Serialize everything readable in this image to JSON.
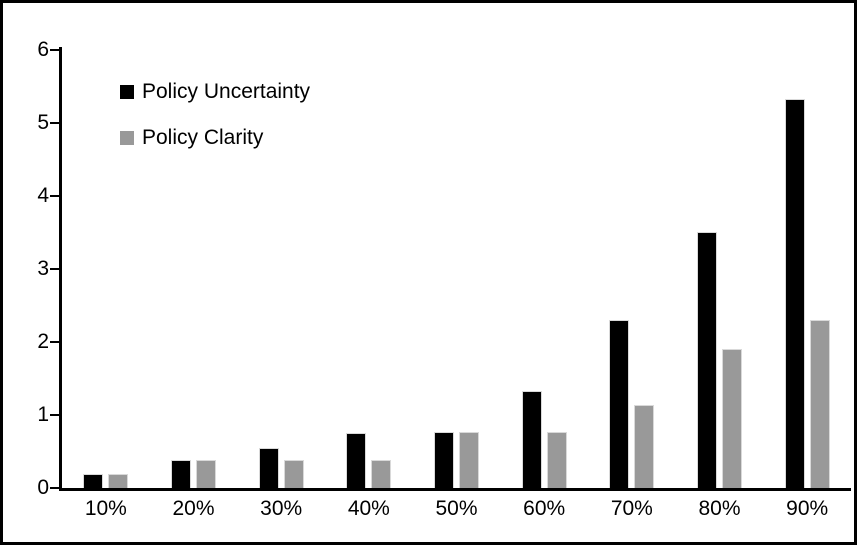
{
  "figure": {
    "background_color": "#ffffff",
    "border_color": "#000000"
  },
  "legend": {
    "items": [
      {
        "label": "Policy Uncertainty",
        "color": "#000000"
      },
      {
        "label": "Policy Clarity",
        "color": "#999999"
      }
    ]
  },
  "chart_data": {
    "type": "bar",
    "title": "",
    "xlabel": "",
    "ylabel": "",
    "categories": [
      "10%",
      "20%",
      "30%",
      "40%",
      "50%",
      "60%",
      "70%",
      "80%",
      "90%"
    ],
    "series": [
      {
        "name": "Policy Uncertainty",
        "color": "#000000",
        "values": [
          0.19,
          0.38,
          0.55,
          0.76,
          0.77,
          1.33,
          2.3,
          3.5,
          5.33
        ]
      },
      {
        "name": "Policy Clarity",
        "color": "#999999",
        "values": [
          0.19,
          0.38,
          0.38,
          0.38,
          0.77,
          0.77,
          1.14,
          1.9,
          2.3
        ]
      }
    ],
    "ylim": [
      0,
      6
    ],
    "yticks": [
      0,
      1,
      2,
      3,
      4,
      5,
      6
    ],
    "grid": false,
    "legend_position": "inside-top-left"
  }
}
